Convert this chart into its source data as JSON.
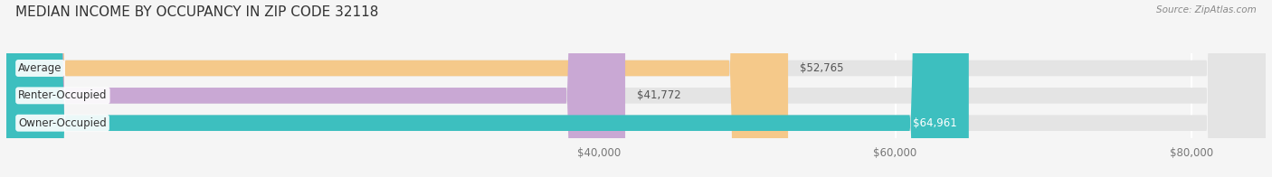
{
  "title": "MEDIAN INCOME BY OCCUPANCY IN ZIP CODE 32118",
  "source": "Source: ZipAtlas.com",
  "categories": [
    "Owner-Occupied",
    "Renter-Occupied",
    "Average"
  ],
  "values": [
    64961,
    41772,
    52765
  ],
  "bar_colors": [
    "#3dbfbf",
    "#c9a8d4",
    "#f5c98a"
  ],
  "background_color": "#f5f5f5",
  "bar_bg_color": "#e4e4e4",
  "xlim": [
    0,
    85000
  ],
  "xticks": [
    40000,
    60000,
    80000
  ],
  "xtick_labels": [
    "$40,000",
    "$60,000",
    "$80,000"
  ],
  "vline_color": "#ffffff",
  "title_fontsize": 11,
  "label_fontsize": 8.5,
  "value_fontsize": 8.5,
  "bar_height": 0.58,
  "figsize": [
    14.06,
    1.96
  ],
  "dpi": 100,
  "value_colors": [
    "#ffffff",
    "#555555",
    "#555555"
  ],
  "value_inside": [
    true,
    false,
    false
  ]
}
